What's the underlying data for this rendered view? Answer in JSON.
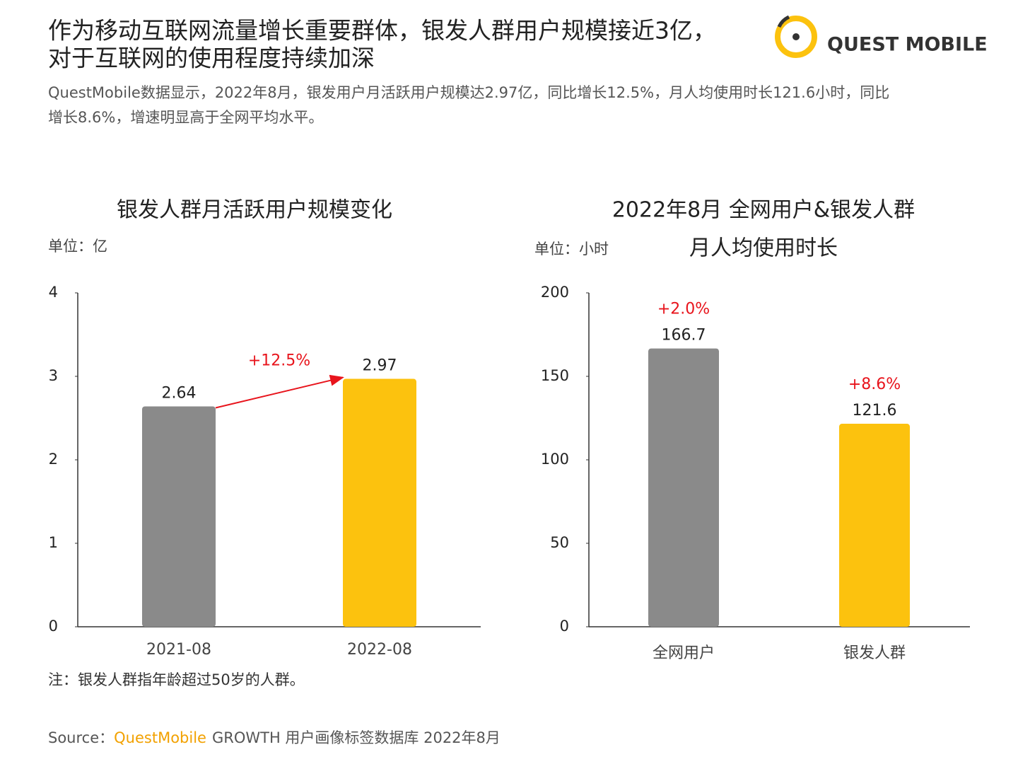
{
  "header": {
    "title_lines": [
      "作为移动互联网流量增长重要群体，银发人群用户规模接近3亿，",
      "对于互联网的使用程度持续加深"
    ],
    "logo": "QUEST MOBILE",
    "summary_lines": [
      "QuestMobile数据显示，2022年8月，银发用户月活跃用户规模达2.97亿，同比增长12.5%，月人均使用时长121.6小时，同比",
      "增长8.6%，增速明显高于全网平均水平。"
    ]
  },
  "chart_data": [
    {
      "type": "bar",
      "title_lines": [
        "银发人群月活跃用户规模变化"
      ],
      "unit_label": "单位：亿",
      "categories": [
        "2021-08",
        "2022-08"
      ],
      "values": [
        2.64,
        2.97
      ],
      "colors": [
        "#8a8a8a",
        "#fcc20e"
      ],
      "ylim": [
        0,
        4
      ],
      "yticks": [
        0,
        1,
        2,
        3,
        4
      ],
      "change_label": "+12.5%"
    },
    {
      "type": "bar",
      "title_lines": [
        "2022年8月 全网用户&银发人群",
        "月人均使用时长"
      ],
      "unit_label": "单位：小时",
      "categories": [
        "全网用户",
        "银发人群"
      ],
      "values": [
        166.7,
        121.6
      ],
      "colors": [
        "#8a8a8a",
        "#fcc20e"
      ],
      "ylim": [
        0,
        200
      ],
      "yticks": [
        0,
        50,
        100,
        150,
        200
      ],
      "growth_labels": [
        "+2.0%",
        "+8.6%"
      ]
    }
  ],
  "note": "注：银发人群指年龄超过50岁的人群。",
  "source": {
    "label": "Source：",
    "brand": "QuestMobile",
    "text": "GROWTH 用户画像标签数据库 2022年8月"
  }
}
